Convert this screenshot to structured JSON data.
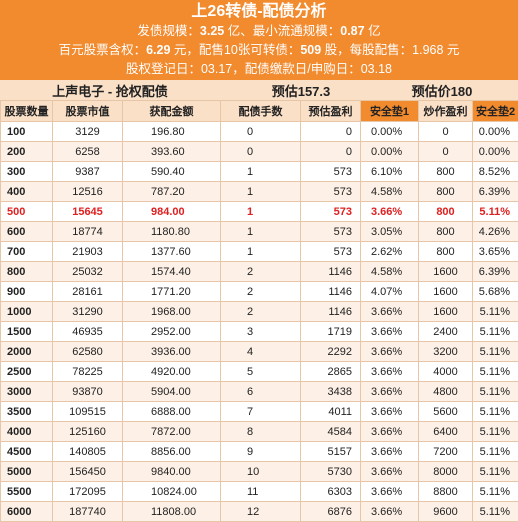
{
  "banner": {
    "title": "上26转债-配债分析",
    "issue_label": "发债规模：",
    "issue_value": "3.25",
    "issue_unit": " 亿、最小流通规模：",
    "min_value": "0.87",
    "min_unit": " 亿",
    "share_label": "百元股票含权：",
    "share_value": "6.29",
    "share_unit": " 元，配售10张可转债：",
    "alloc_value": "509",
    "alloc_unit": " 股，每股配售：1.968 元",
    "date_line": "股权登记日：03.17，配债缴款日/申购日：03.18"
  },
  "subhead": {
    "company": "上声电子 - 抢权配债",
    "est1": "预估157.3",
    "est2": "预估价180"
  },
  "columns": [
    "股票数量",
    "股票市值",
    "获配金额",
    "配债手数",
    "预估盈利",
    "安全垫1",
    "炒作盈利",
    "安全垫2"
  ],
  "rows": [
    [
      "100",
      "3129",
      "196.80",
      "0",
      "0",
      "0.00%",
      "0",
      "0.00%"
    ],
    [
      "200",
      "6258",
      "393.60",
      "0",
      "0",
      "0.00%",
      "0",
      "0.00%"
    ],
    [
      "300",
      "9387",
      "590.40",
      "1",
      "573",
      "6.10%",
      "800",
      "8.52%"
    ],
    [
      "400",
      "12516",
      "787.20",
      "1",
      "573",
      "4.58%",
      "800",
      "6.39%"
    ],
    [
      "500",
      "15645",
      "984.00",
      "1",
      "573",
      "3.66%",
      "800",
      "5.11%"
    ],
    [
      "600",
      "18774",
      "1180.80",
      "1",
      "573",
      "3.05%",
      "800",
      "4.26%"
    ],
    [
      "700",
      "21903",
      "1377.60",
      "1",
      "573",
      "2.62%",
      "800",
      "3.65%"
    ],
    [
      "800",
      "25032",
      "1574.40",
      "2",
      "1146",
      "4.58%",
      "1600",
      "6.39%"
    ],
    [
      "900",
      "28161",
      "1771.20",
      "2",
      "1146",
      "4.07%",
      "1600",
      "5.68%"
    ],
    [
      "1000",
      "31290",
      "1968.00",
      "2",
      "1146",
      "3.66%",
      "1600",
      "5.11%"
    ],
    [
      "1500",
      "46935",
      "2952.00",
      "3",
      "1719",
      "3.66%",
      "2400",
      "5.11%"
    ],
    [
      "2000",
      "62580",
      "3936.00",
      "4",
      "2292",
      "3.66%",
      "3200",
      "5.11%"
    ],
    [
      "2500",
      "78225",
      "4920.00",
      "5",
      "2865",
      "3.66%",
      "4000",
      "5.11%"
    ],
    [
      "3000",
      "93870",
      "5904.00",
      "6",
      "3438",
      "3.66%",
      "4800",
      "5.11%"
    ],
    [
      "3500",
      "109515",
      "6888.00",
      "7",
      "4011",
      "3.66%",
      "5600",
      "5.11%"
    ],
    [
      "4000",
      "125160",
      "7872.00",
      "8",
      "4584",
      "3.66%",
      "6400",
      "5.11%"
    ],
    [
      "4500",
      "140805",
      "8856.00",
      "9",
      "5157",
      "3.66%",
      "7200",
      "5.11%"
    ],
    [
      "5000",
      "156450",
      "9840.00",
      "10",
      "5730",
      "3.66%",
      "8000",
      "5.11%"
    ],
    [
      "5500",
      "172095",
      "10824.00",
      "11",
      "6303",
      "3.66%",
      "8800",
      "5.11%"
    ],
    [
      "6000",
      "187740",
      "11808.00",
      "12",
      "6876",
      "3.66%",
      "9600",
      "5.11%"
    ]
  ],
  "highlight_row_index": 4,
  "colors": {
    "accent": "#f28a2e",
    "header_bg": "#fbe0c8",
    "stripe": "#fdf0e6",
    "highlight_text": "#e02020"
  }
}
